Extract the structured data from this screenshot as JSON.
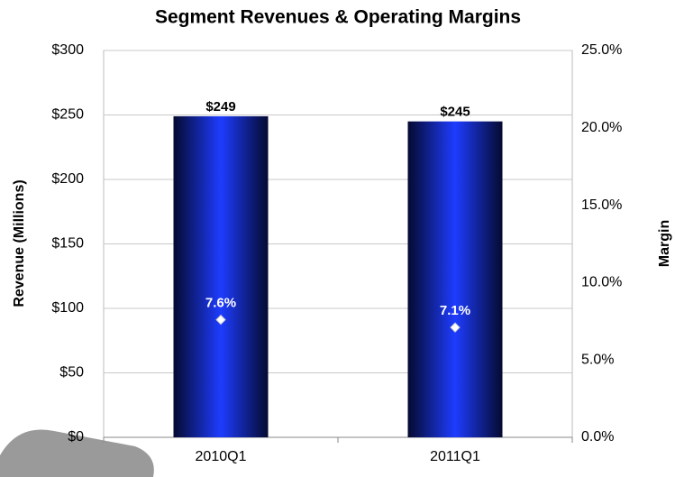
{
  "chart_data": {
    "type": "bar",
    "title": "Segment Revenues & Operating Margins",
    "y_label": "Revenue (Millions)",
    "y2_label": "Margin",
    "categories": [
      "2010Q1",
      "2011Q1"
    ],
    "series": [
      {
        "color": "#1e3cff",
        "values": [
          249,
          245
        ],
        "value_labels": [
          "$249",
          "$245"
        ]
      },
      {
        "type": "scatter",
        "axis": "y2",
        "color": "#ffffff",
        "values": [
          7.6,
          7.1
        ],
        "value_labels": [
          "7.6%",
          "7.1%"
        ]
      }
    ],
    "ylim": [
      0,
      300
    ],
    "yticks": [
      {
        "value": 0,
        "label": "$0"
      },
      {
        "value": 50,
        "label": "$50"
      },
      {
        "value": 100,
        "label": "$100"
      },
      {
        "value": 150,
        "label": "$150"
      },
      {
        "value": 200,
        "label": "$200"
      },
      {
        "value": 250,
        "label": "$250"
      },
      {
        "value": 300,
        "label": "$300"
      }
    ],
    "y2lim": [
      0,
      25
    ],
    "y2ticks": [
      {
        "value": 0,
        "label": "0.0%"
      },
      {
        "value": 5,
        "label": "5.0%"
      },
      {
        "value": 10,
        "label": "10.0%"
      },
      {
        "value": 15,
        "label": "15.0%"
      },
      {
        "value": 20,
        "label": "20.0%"
      },
      {
        "value": 25,
        "label": "25.0%"
      }
    ],
    "grid": true
  }
}
